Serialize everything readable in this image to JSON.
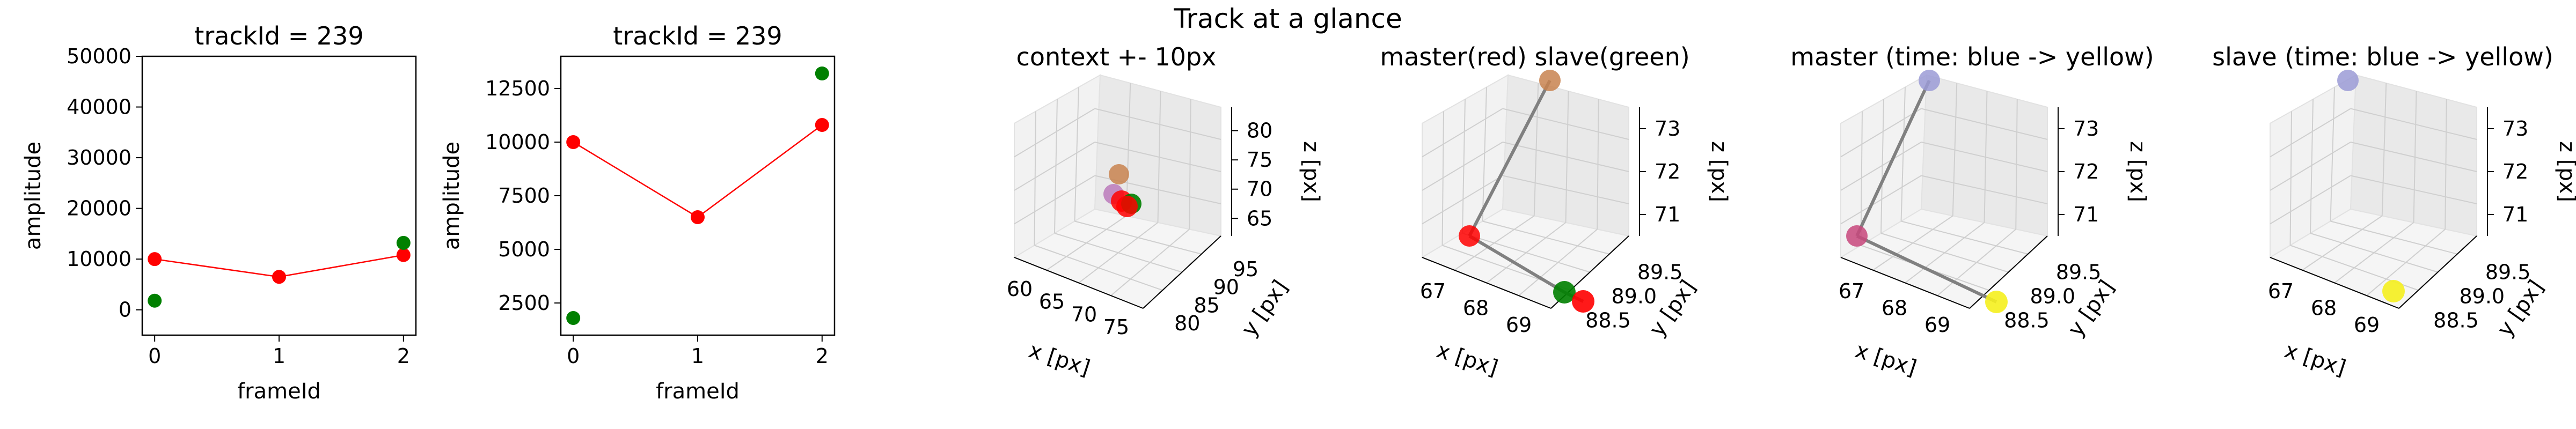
{
  "figure": {
    "suptitle": "Track at a glance"
  },
  "chart_data": [
    {
      "type": "scatter",
      "title": "trackId = 239",
      "xlabel": "frameId",
      "ylabel": "amplitude",
      "xlim": [
        -0.1,
        2.1
      ],
      "ylim": [
        -5000,
        50000
      ],
      "x_ticks": [
        "0",
        "1",
        "2"
      ],
      "y_ticks": [
        "0",
        "10000",
        "20000",
        "30000",
        "40000",
        "50000"
      ],
      "series": [
        {
          "color": "#ff0000",
          "connected": true,
          "x": [
            0,
            1,
            2
          ],
          "y": [
            10000,
            6500,
            10800
          ]
        },
        {
          "color": "#008000",
          "connected": false,
          "x": [
            0,
            2
          ],
          "y": [
            1800,
            13200
          ]
        }
      ]
    },
    {
      "type": "scatter",
      "title": "trackId = 239",
      "xlabel": "frameId",
      "ylabel": "amplitude",
      "xlim": [
        -0.1,
        2.1
      ],
      "ylim": [
        1000,
        14000
      ],
      "x_ticks": [
        "0",
        "1",
        "2"
      ],
      "y_ticks": [
        "2500",
        "5000",
        "7500",
        "10000",
        "12500"
      ],
      "series": [
        {
          "color": "#ff0000",
          "connected": true,
          "x": [
            0,
            1,
            2
          ],
          "y": [
            10000,
            6500,
            10800
          ]
        },
        {
          "color": "#008000",
          "connected": false,
          "x": [
            0,
            2
          ],
          "y": [
            1800,
            13200
          ]
        }
      ]
    },
    {
      "type": "scatter3d",
      "title": "context +- 10px",
      "xlabel": "x [px]",
      "ylabel": "y [px]",
      "zlabel": "z [px]",
      "x_ticks": [
        "60",
        "65",
        "70",
        "75"
      ],
      "y_ticks": [
        "80",
        "85",
        "90",
        "95"
      ],
      "z_ticks": [
        "65",
        "70",
        "75",
        "80"
      ],
      "points_shown": [
        "red",
        "green",
        "orange-brown",
        "violet"
      ]
    },
    {
      "type": "scatter3d",
      "title": "master(red) slave(green)",
      "xlabel": "x [px]",
      "ylabel": "y [px]",
      "zlabel": "z [px]",
      "x_ticks": [
        "67",
        "68",
        "69"
      ],
      "y_ticks": [
        "88.5",
        "89.0",
        "89.5"
      ],
      "z_ticks": [
        "71",
        "72",
        "73"
      ],
      "points_shown": [
        "orange-brown",
        "red",
        "green",
        "red"
      ]
    },
    {
      "type": "scatter3d",
      "title": "master (time: blue -> yellow)",
      "xlabel": "x [px]",
      "ylabel": "y [px]",
      "zlabel": "z [px]",
      "x_ticks": [
        "67",
        "68",
        "69"
      ],
      "y_ticks": [
        "88.5",
        "89.0",
        "89.5"
      ],
      "z_ticks": [
        "71",
        "72",
        "73"
      ],
      "points_shown": [
        "blue",
        "purple",
        "yellow"
      ]
    },
    {
      "type": "scatter3d",
      "title": "slave (time: blue -> yellow)",
      "xlabel": "x [px]",
      "ylabel": "y [px]",
      "zlabel": "z [px]",
      "x_ticks": [
        "67",
        "68",
        "69"
      ],
      "y_ticks": [
        "88.5",
        "89.0",
        "89.5"
      ],
      "z_ticks": [
        "71",
        "72",
        "73"
      ],
      "points_shown": [
        "blue",
        "yellow"
      ]
    }
  ]
}
